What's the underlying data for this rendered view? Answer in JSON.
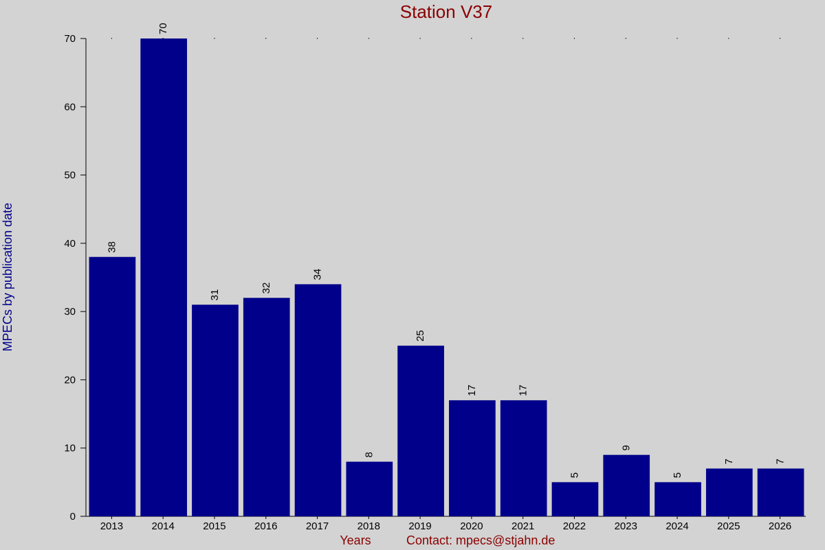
{
  "chart_data": {
    "type": "bar",
    "title": "Station V37",
    "ylabel": "MPECs by publication date",
    "xlabel": "Years",
    "footer_note": "Contact: mpecs@stjahn.de",
    "categories": [
      "2013",
      "2014",
      "2015",
      "2016",
      "2017",
      "2018",
      "2019",
      "2020",
      "2021",
      "2022",
      "2023",
      "2024",
      "2025",
      "2026"
    ],
    "values": [
      38,
      70,
      31,
      32,
      34,
      8,
      25,
      17,
      17,
      5,
      9,
      5,
      7,
      7
    ],
    "ylim": [
      0,
      70
    ],
    "yticks": [
      0,
      10,
      20,
      30,
      40,
      50,
      60,
      70
    ],
    "bar_color": "#00008b",
    "background": "#d3d3d3",
    "title_color": "#8b0000",
    "ylabel_color": "#00008b",
    "grid": false
  }
}
